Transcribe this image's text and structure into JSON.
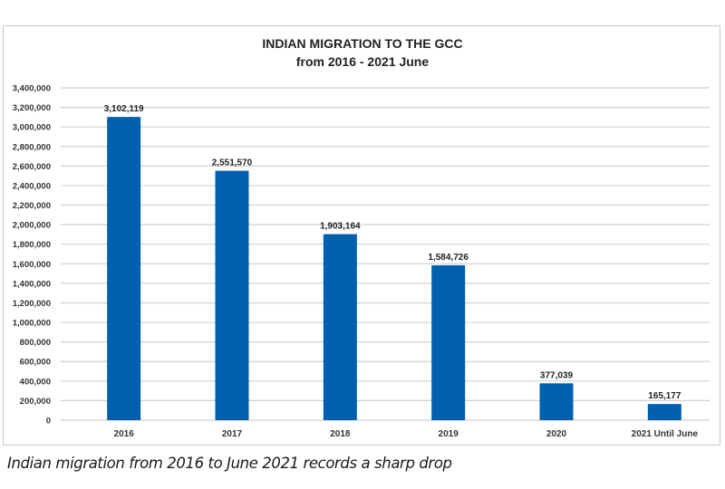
{
  "chart_data": {
    "type": "bar",
    "title": "INDIAN MIGRATION TO THE GCC",
    "subtitle": "from 2016 - 2021 June",
    "xlabel": "",
    "ylabel": "",
    "categories": [
      "2016",
      "2017",
      "2018",
      "2019",
      "2020",
      "2021 Until June"
    ],
    "values": [
      3102119,
      2551570,
      1903164,
      1584726,
      377039,
      165177
    ],
    "data_labels": [
      "3,102,119",
      "2,551,570",
      "1,903,164",
      "1,584,726",
      "377,039",
      "165,177"
    ],
    "ylim": [
      0,
      3400000
    ],
    "ytick_step": 200000,
    "ytick_labels": [
      "0",
      "200,000",
      "400,000",
      "600,000",
      "800,000",
      "1,000,000",
      "1,200,000",
      "1,400,000",
      "1,600,000",
      "1,800,000",
      "2,000,000",
      "2,200,000",
      "2,400,000",
      "2,600,000",
      "2,800,000",
      "3,000,000",
      "3,200,000",
      "3,400,000"
    ],
    "grid": true,
    "legend": "none",
    "bar_color": "#0060AE",
    "grid_color": "#d0d0d0"
  },
  "caption": "Indian migration from 2016 to June 2021 records a sharp drop"
}
